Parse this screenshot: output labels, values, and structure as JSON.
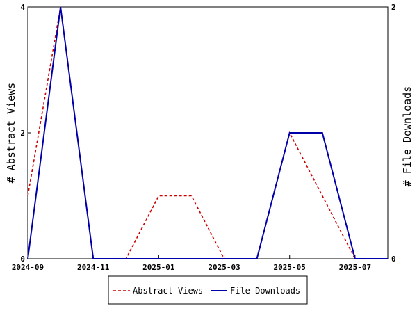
{
  "chart_data": {
    "type": "line",
    "x": [
      "2024-09",
      "2024-10",
      "2024-11",
      "2024-12",
      "2025-01",
      "2025-02",
      "2025-03",
      "2025-04",
      "2025-05",
      "2025-06",
      "2025-07",
      "2025-08"
    ],
    "x_tick_labels": [
      "2024-09",
      "2024-11",
      "2025-01",
      "2025-03",
      "2025-05",
      "2025-07"
    ],
    "y_left_label": "# Abstract Views",
    "y_left_ticks": [
      "0",
      "2",
      "4"
    ],
    "y_left_lim": [
      0,
      4
    ],
    "y_right_label": "# File Downloads",
    "y_right_ticks": [
      "0",
      "2"
    ],
    "y_right_lim": [
      0,
      2
    ],
    "grid": false,
    "legend_position": "bottom",
    "series": [
      {
        "name": "Abstract Views",
        "axis": "left",
        "color": "#cc0000",
        "dash": "dashed",
        "values": [
          1,
          4,
          0,
          0,
          1,
          1,
          0,
          0,
          2,
          1,
          0,
          0
        ]
      },
      {
        "name": "File Downloads",
        "axis": "right",
        "color": "#0000aa",
        "dash": "solid",
        "values": [
          0,
          2,
          0,
          0,
          0,
          0,
          0,
          0,
          1,
          1,
          0,
          0
        ]
      }
    ]
  }
}
